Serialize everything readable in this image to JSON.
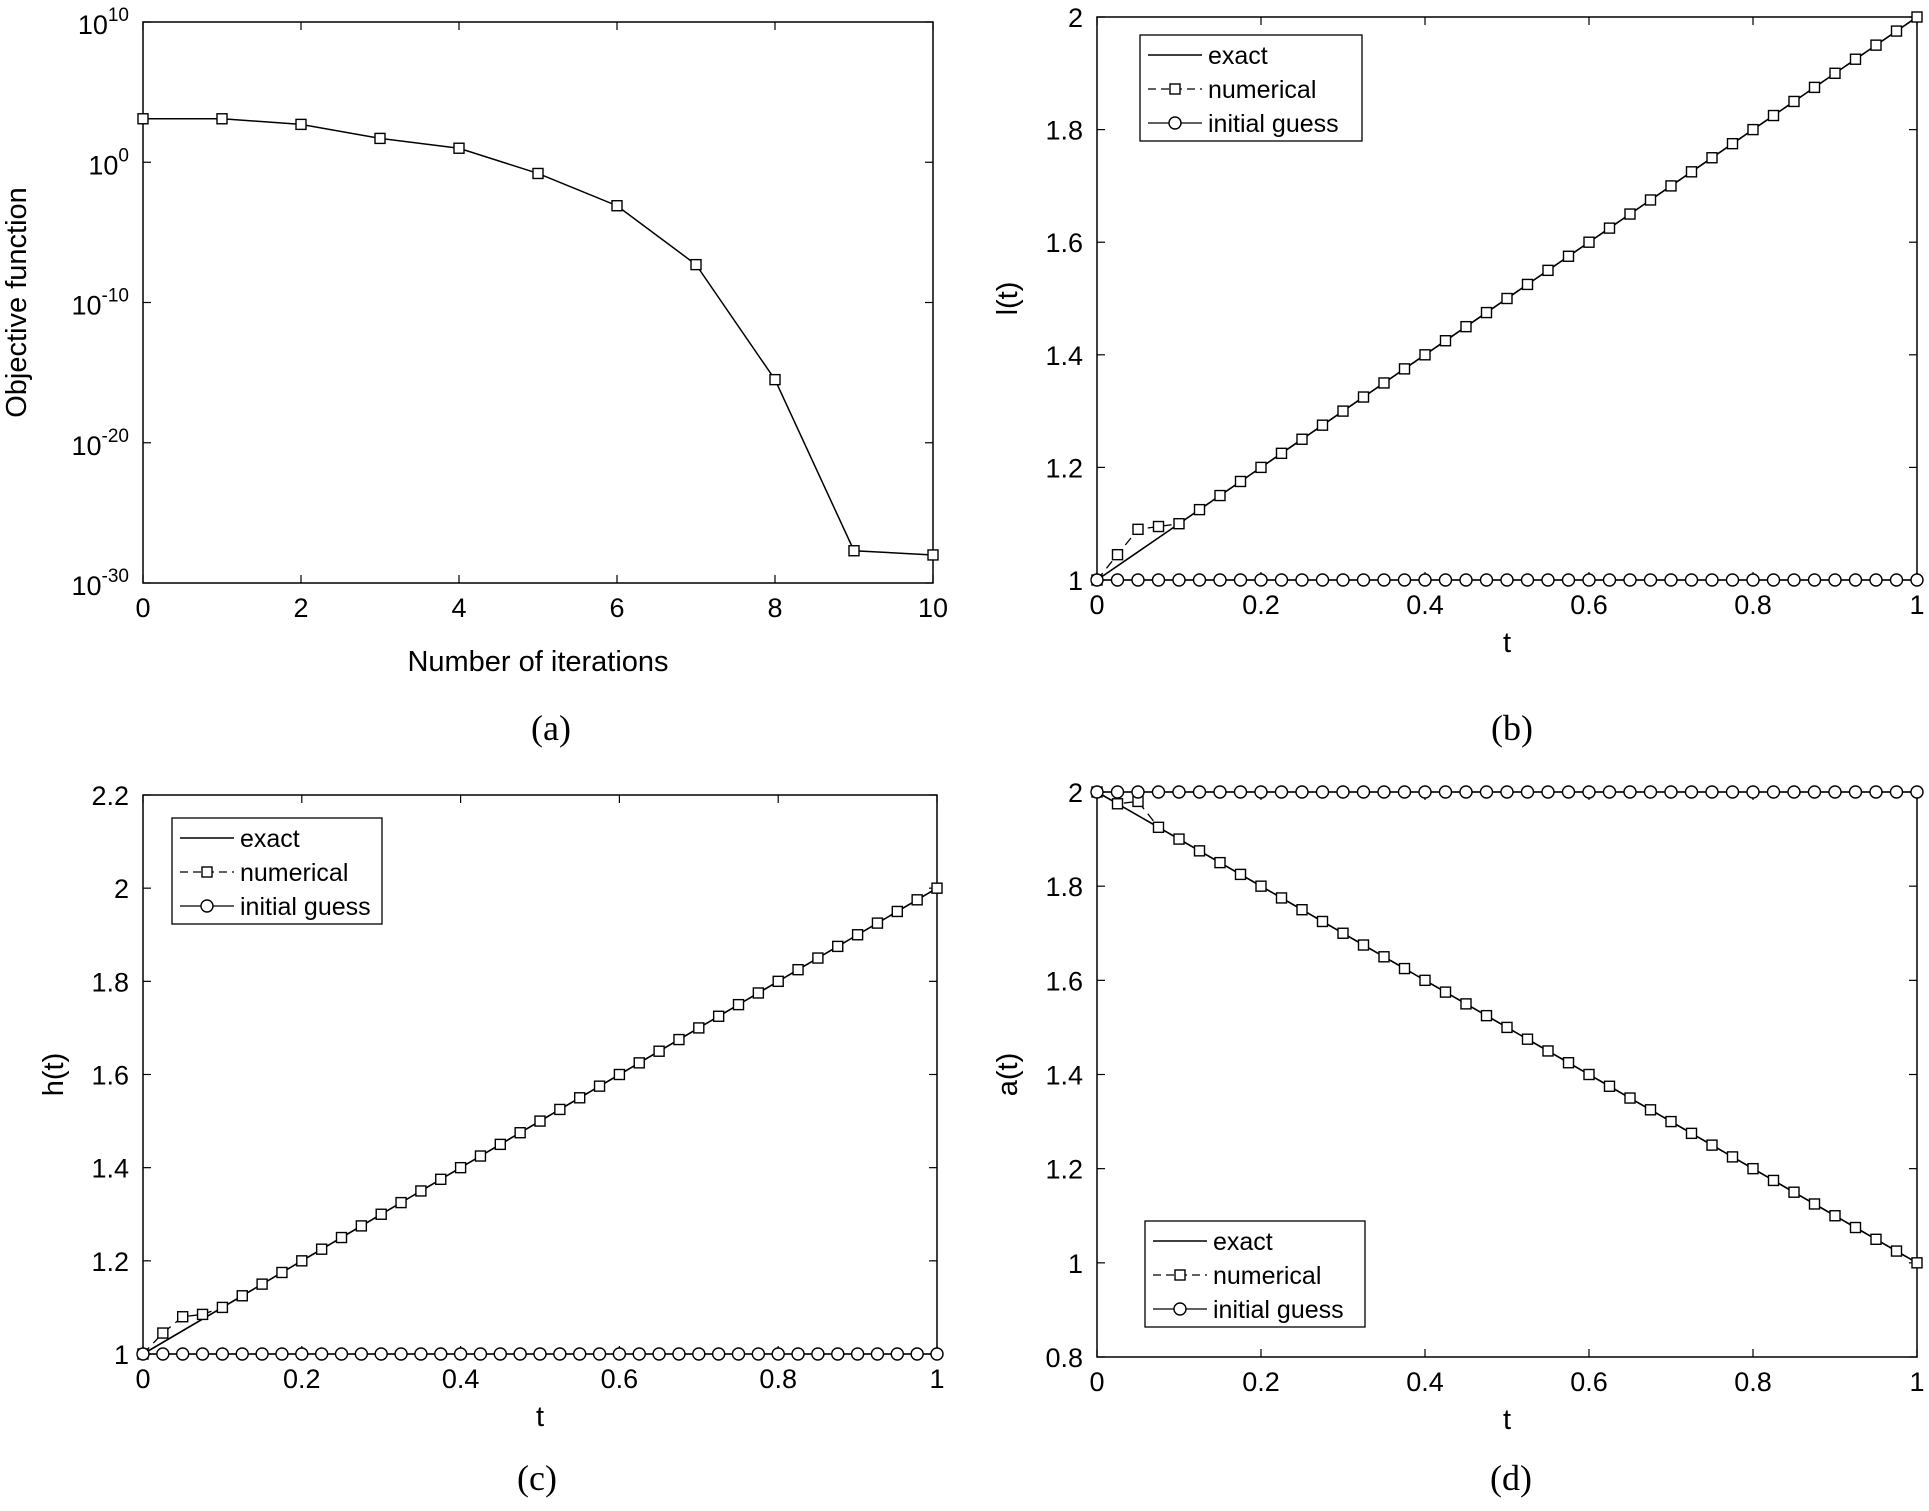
{
  "chart_data": [
    {
      "id": "a",
      "caption": "(a)",
      "type": "line",
      "xlabel": "Number of iterations",
      "ylabel": "Objective function",
      "xlim": [
        0,
        10
      ],
      "ylim_exp": [
        -30,
        10
      ],
      "yscale": "log",
      "xticks": [
        0,
        2,
        4,
        6,
        8,
        10
      ],
      "xtick_labels": [
        "0",
        "2",
        "4",
        "6",
        "8",
        "10"
      ],
      "yticks_exp": [
        -30,
        -20,
        -10,
        0,
        10
      ],
      "ytick_labels": [
        {
          "base": "10",
          "exp": "-30"
        },
        {
          "base": "10",
          "exp": "-20"
        },
        {
          "base": "10",
          "exp": "-10"
        },
        {
          "base": "10",
          "exp": "0"
        },
        {
          "base": "10",
          "exp": "10"
        }
      ],
      "series": [
        {
          "marker": "square",
          "x": [
            0,
            1,
            2,
            3,
            4,
            5,
            6,
            7,
            8,
            9,
            10
          ],
          "y_exp": [
            3.1,
            3.1,
            2.7,
            1.7,
            1.0,
            -0.8,
            -3.1,
            -7.3,
            -15.5,
            -27.7,
            -28.0
          ]
        }
      ]
    },
    {
      "id": "b",
      "caption": "(b)",
      "type": "line",
      "xlabel": "t",
      "ylabel": "l(t)",
      "xlim": [
        0,
        1
      ],
      "ylim": [
        1,
        2
      ],
      "xticks": [
        0,
        0.2,
        0.4,
        0.6,
        0.8,
        1
      ],
      "xtick_labels": [
        "0",
        "0.2",
        "0.4",
        "0.6",
        "0.8",
        "1"
      ],
      "yticks": [
        1,
        1.2,
        1.4,
        1.6,
        1.8,
        2
      ],
      "ytick_labels": [
        "1",
        "1.2",
        "1.4",
        "1.6",
        "1.8",
        "2"
      ],
      "legend_position": "top-left",
      "series": [
        {
          "name": "exact",
          "style": "line",
          "kind": "linear",
          "y0": 1,
          "y1": 2
        },
        {
          "name": "numerical",
          "style": "square",
          "kind": "linear",
          "y0": 1,
          "y1": 2,
          "n": 41,
          "dev": [
            [
              1,
              0.02
            ],
            [
              2,
              0.04
            ],
            [
              3,
              0.02
            ]
          ]
        },
        {
          "name": "initial guess",
          "style": "circle",
          "kind": "const",
          "value": 1,
          "n": 41
        }
      ]
    },
    {
      "id": "c",
      "caption": "(c)",
      "type": "line",
      "xlabel": "t",
      "ylabel": "h(t)",
      "xlim": [
        0,
        1
      ],
      "ylim": [
        1,
        2.2
      ],
      "xticks": [
        0,
        0.2,
        0.4,
        0.6,
        0.8,
        1
      ],
      "xtick_labels": [
        "0",
        "0.2",
        "0.4",
        "0.6",
        "0.8",
        "1"
      ],
      "yticks": [
        1,
        1.2,
        1.4,
        1.6,
        1.8,
        2,
        2.2
      ],
      "ytick_labels": [
        "1",
        "1.2",
        "1.4",
        "1.6",
        "1.8",
        "2",
        "2.2"
      ],
      "legend_position": "top-left",
      "series": [
        {
          "name": "exact",
          "style": "line",
          "kind": "linear",
          "y0": 1,
          "y1": 2
        },
        {
          "name": "numerical",
          "style": "square",
          "kind": "linear",
          "y0": 1,
          "y1": 2,
          "n": 41,
          "dev": [
            [
              1,
              0.02
            ],
            [
              2,
              0.03
            ],
            [
              3,
              0.01
            ]
          ]
        },
        {
          "name": "initial guess",
          "style": "circle",
          "kind": "const",
          "value": 1,
          "n": 41
        }
      ]
    },
    {
      "id": "d",
      "caption": "(d)",
      "type": "line",
      "xlabel": "t",
      "ylabel": "a(t)",
      "xlim": [
        0,
        1
      ],
      "ylim": [
        0.8,
        2
      ],
      "xticks": [
        0,
        0.2,
        0.4,
        0.6,
        0.8,
        1
      ],
      "xtick_labels": [
        "0",
        "0.2",
        "0.4",
        "0.6",
        "0.8",
        "1"
      ],
      "yticks": [
        0.8,
        1,
        1.2,
        1.4,
        1.6,
        1.8,
        2
      ],
      "ytick_labels": [
        "0.8",
        "1",
        "1.2",
        "1.4",
        "1.6",
        "1.8",
        "2"
      ],
      "legend_position": "bottom-left",
      "series": [
        {
          "name": "exact",
          "style": "line",
          "kind": "linear",
          "y0": 2,
          "y1": 1
        },
        {
          "name": "numerical",
          "style": "square",
          "kind": "linear",
          "y0": 2,
          "y1": 1,
          "n": 41,
          "dev": [
            [
              1,
              0.0
            ],
            [
              2,
              0.03
            ],
            [
              3,
              0.0
            ]
          ]
        },
        {
          "name": "initial guess",
          "style": "circle",
          "kind": "const",
          "value": 2,
          "n": 41
        }
      ]
    }
  ]
}
